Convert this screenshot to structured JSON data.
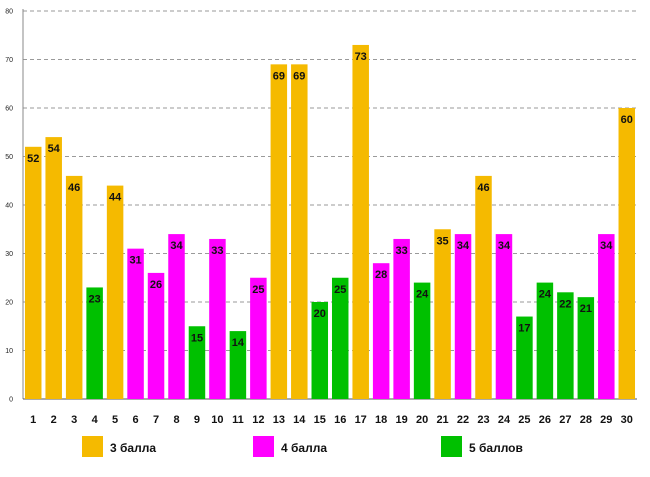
{
  "chart_data": {
    "type": "bar",
    "title": "",
    "xlabel": "",
    "ylabel": "",
    "ylim": [
      0,
      80
    ],
    "yticks": [
      0,
      10,
      20,
      30,
      40,
      50,
      60,
      70,
      80
    ],
    "grid": true,
    "categories": [
      "1",
      "2",
      "3",
      "4",
      "5",
      "6",
      "7",
      "8",
      "9",
      "10",
      "11",
      "12",
      "13",
      "14",
      "15",
      "16",
      "17",
      "18",
      "19",
      "20",
      "21",
      "22",
      "23",
      "24",
      "25",
      "26",
      "27",
      "28",
      "29",
      "30"
    ],
    "values": [
      52,
      54,
      46,
      23,
      44,
      31,
      26,
      34,
      15,
      33,
      14,
      25,
      69,
      69,
      20,
      25,
      73,
      28,
      33,
      24,
      35,
      34,
      46,
      34,
      17,
      24,
      22,
      21,
      34,
      60
    ],
    "groups": [
      0,
      0,
      0,
      2,
      0,
      1,
      1,
      1,
      2,
      1,
      2,
      1,
      0,
      0,
      2,
      2,
      0,
      1,
      1,
      2,
      0,
      1,
      0,
      1,
      2,
      2,
      2,
      2,
      1,
      0
    ],
    "legend": [
      {
        "name": "3 балла",
        "color": "#F5BA00"
      },
      {
        "name": "4 балла",
        "color": "#FF00FF"
      },
      {
        "name": "5 баллов",
        "color": "#00C000"
      }
    ],
    "legend_position": "bottom"
  }
}
